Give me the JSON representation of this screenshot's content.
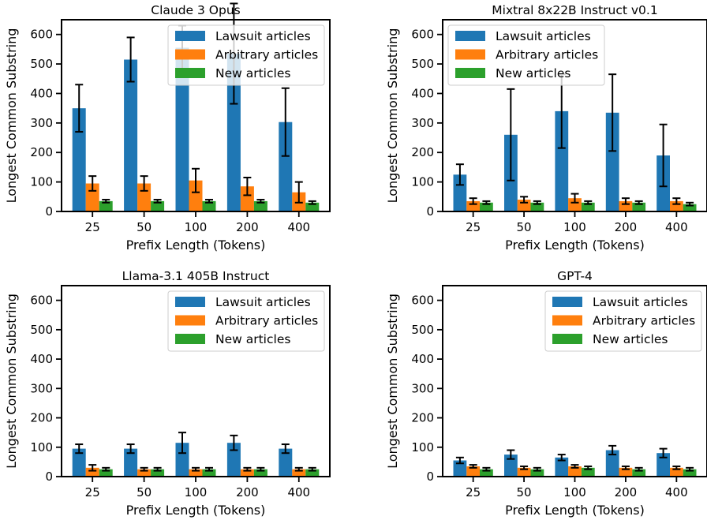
{
  "chart_data": [
    {
      "type": "bar",
      "title": "Claude 3 Opus",
      "xlabel": "Prefix Length (Tokens)",
      "ylabel": "Longest Common Substring",
      "categories": [
        "25",
        "50",
        "100",
        "200",
        "400"
      ],
      "yticks": [
        0,
        100,
        200,
        300,
        400,
        500,
        600
      ],
      "ylim": [
        0,
        650
      ],
      "legend_position": "top-right",
      "series": [
        {
          "name": "Lawsuit articles",
          "color": "#1f77b4",
          "values": [
            350,
            515,
            555,
            535,
            303
          ],
          "errors": [
            80,
            75,
            75,
            170,
            115
          ]
        },
        {
          "name": "Arbitrary articles",
          "color": "#ff7f0e",
          "values": [
            95,
            95,
            105,
            85,
            65
          ],
          "errors": [
            25,
            25,
            40,
            30,
            35
          ]
        },
        {
          "name": "New articles",
          "color": "#2ca02c",
          "values": [
            35,
            35,
            35,
            35,
            30
          ],
          "errors": [
            5,
            5,
            5,
            5,
            5
          ]
        }
      ]
    },
    {
      "type": "bar",
      "title": "Mixtral 8x22B Instruct v0.1",
      "xlabel": "Prefix Length (Tokens)",
      "ylabel": "Longest Common Substring",
      "categories": [
        "25",
        "50",
        "100",
        "200",
        "400"
      ],
      "yticks": [
        0,
        100,
        200,
        300,
        400,
        500,
        600
      ],
      "ylim": [
        0,
        650
      ],
      "legend_position": "top-left",
      "series": [
        {
          "name": "Lawsuit articles",
          "color": "#1f77b4",
          "values": [
            125,
            260,
            340,
            335,
            190
          ],
          "errors": [
            35,
            155,
            125,
            130,
            105
          ]
        },
        {
          "name": "Arbitrary articles",
          "color": "#ff7f0e",
          "values": [
            35,
            40,
            45,
            35,
            35
          ],
          "errors": [
            10,
            10,
            15,
            10,
            10
          ]
        },
        {
          "name": "New articles",
          "color": "#2ca02c",
          "values": [
            30,
            30,
            30,
            30,
            25
          ],
          "errors": [
            5,
            5,
            5,
            5,
            5
          ]
        }
      ]
    },
    {
      "type": "bar",
      "title": "Llama-3.1 405B Instruct",
      "xlabel": "Prefix Length (Tokens)",
      "ylabel": "Longest Common Substring",
      "categories": [
        "25",
        "50",
        "100",
        "200",
        "400"
      ],
      "yticks": [
        0,
        100,
        200,
        300,
        400,
        500,
        600
      ],
      "ylim": [
        0,
        650
      ],
      "legend_position": "top-right",
      "series": [
        {
          "name": "Lawsuit articles",
          "color": "#1f77b4",
          "values": [
            95,
            95,
            115,
            115,
            95
          ],
          "errors": [
            15,
            15,
            35,
            25,
            15
          ]
        },
        {
          "name": "Arbitrary articles",
          "color": "#ff7f0e",
          "values": [
            30,
            25,
            25,
            25,
            25
          ],
          "errors": [
            10,
            5,
            5,
            5,
            5
          ]
        },
        {
          "name": "New articles",
          "color": "#2ca02c",
          "values": [
            25,
            25,
            25,
            25,
            25
          ],
          "errors": [
            5,
            5,
            5,
            5,
            5
          ]
        }
      ]
    },
    {
      "type": "bar",
      "title": "GPT-4",
      "xlabel": "Prefix Length (Tokens)",
      "ylabel": "Longest Common Substring",
      "categories": [
        "25",
        "50",
        "100",
        "200",
        "400"
      ],
      "yticks": [
        0,
        100,
        200,
        300,
        400,
        500,
        600
      ],
      "ylim": [
        0,
        650
      ],
      "legend_position": "top-right",
      "series": [
        {
          "name": "Lawsuit articles",
          "color": "#1f77b4",
          "values": [
            55,
            75,
            65,
            90,
            80
          ],
          "errors": [
            10,
            15,
            10,
            15,
            15
          ]
        },
        {
          "name": "Arbitrary articles",
          "color": "#ff7f0e",
          "values": [
            35,
            30,
            35,
            30,
            30
          ],
          "errors": [
            5,
            5,
            5,
            5,
            5
          ]
        },
        {
          "name": "New articles",
          "color": "#2ca02c",
          "values": [
            25,
            25,
            30,
            25,
            25
          ],
          "errors": [
            5,
            5,
            5,
            5,
            5
          ]
        }
      ]
    }
  ]
}
